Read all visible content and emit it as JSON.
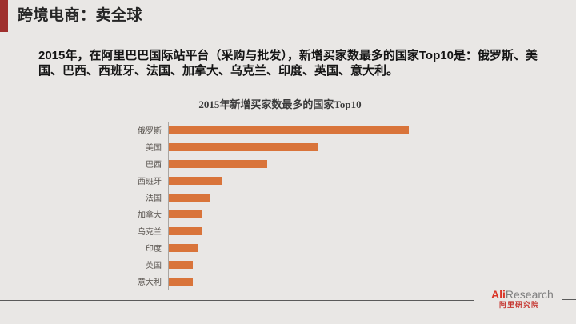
{
  "header": {
    "title": "跨境电商：卖全球"
  },
  "body": {
    "paragraph": "2015年，在阿里巴巴国际站平台（采购与批发），新增买家数最多的国家Top10是：俄罗斯、美国、巴西、西班牙、法国、加拿大、乌克兰、印度、英国、意大利。"
  },
  "chart_data": {
    "type": "bar",
    "orientation": "horizontal",
    "title": "2015年新增买家数最多的国家Top10",
    "categories": [
      "俄罗斯",
      "美国",
      "巴西",
      "西班牙",
      "法国",
      "加拿大",
      "乌克兰",
      "印度",
      "英国",
      "意大利"
    ],
    "values_pct_of_max": [
      100,
      62,
      41,
      22,
      17,
      14,
      14,
      12,
      10,
      10
    ],
    "value_axis": "unlabeled (relative bar lengths only, max = 俄罗斯)",
    "grid": "off",
    "legend": "none",
    "bar_color": "#d9743a"
  },
  "footer": {
    "logo_ali": "Ali",
    "logo_research": "Research",
    "logo_cn": "阿里研究院"
  },
  "colors": {
    "background": "#e9e7e5",
    "accent_bar": "#9f2f2d",
    "bar_fill": "#d9743a",
    "chart_label": "#57524d",
    "logo_red": "#da3527",
    "logo_gray": "#7f7f7f"
  }
}
